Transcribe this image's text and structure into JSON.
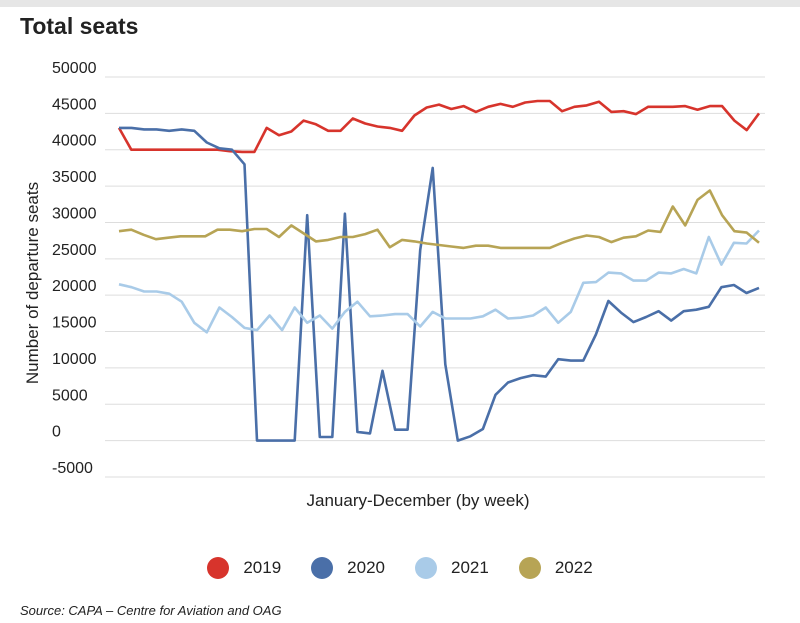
{
  "title": "Total seats",
  "source": "Source: CAPA – Centre for Aviation and OAG",
  "chart_data": {
    "type": "line",
    "xlabel": "January-December (by week)",
    "ylabel": "Number of departure seats",
    "ylim": [
      -5000,
      50000
    ],
    "yticks": [
      -5000,
      0,
      5000,
      10000,
      15000,
      20000,
      25000,
      30000,
      35000,
      40000,
      45000,
      50000
    ],
    "grid": true,
    "legend_position": "bottom",
    "series": [
      {
        "name": "2019",
        "color": "#d7342c",
        "values": [
          43000,
          40000,
          40000,
          40000,
          40000,
          40000,
          40000,
          40000,
          40000,
          39800,
          39700,
          39700,
          43000,
          42000,
          42500,
          44000,
          43500,
          42600,
          42600,
          44300,
          43600,
          43200,
          43000,
          42600,
          44700,
          45800,
          46200,
          45600,
          46000,
          45200,
          45900,
          46300,
          45900,
          46500,
          46700,
          46700,
          45300,
          45900,
          46100,
          46600,
          45200,
          45300,
          44900,
          45900,
          45900,
          45900,
          46000,
          45500,
          46000,
          46000,
          44000,
          42700,
          45000
        ]
      },
      {
        "name": "2020",
        "color": "#4a6fa8",
        "values": [
          43000,
          43000,
          42800,
          42800,
          42600,
          42800,
          42600,
          41000,
          40200,
          40000,
          38000,
          0,
          0,
          0,
          0,
          31000,
          500,
          500,
          31200,
          1200,
          1000,
          9600,
          1500,
          1500,
          26200,
          37500,
          10500,
          0,
          600,
          1600,
          6300,
          8000,
          8600,
          9000,
          8800,
          11200,
          11000,
          11000,
          14600,
          19200,
          17600,
          16300,
          17000,
          17800,
          16500,
          17800,
          18000,
          18400,
          21100,
          21400,
          20300,
          21000
        ]
      },
      {
        "name": "2021",
        "color": "#a9cbe8",
        "values": [
          21500,
          21100,
          20500,
          20500,
          20200,
          19100,
          16200,
          14900,
          18300,
          17000,
          15500,
          15200,
          17200,
          15200,
          18300,
          16200,
          17200,
          15400,
          17700,
          19100,
          17100,
          17200,
          17400,
          17400,
          15700,
          17700,
          16800,
          16800,
          16800,
          17100,
          18000,
          16800,
          16900,
          17200,
          18300,
          16200,
          17700,
          21700,
          21800,
          23100,
          23000,
          22000,
          22000,
          23100,
          23000,
          23600,
          23000,
          28000,
          24200,
          27200,
          27100,
          28900
        ]
      },
      {
        "name": "2022",
        "color": "#b7a455",
        "values": [
          28800,
          29000,
          28300,
          27700,
          27900,
          28100,
          28100,
          28100,
          29000,
          29000,
          28800,
          29100,
          29100,
          28000,
          29600,
          28500,
          27400,
          27600,
          28000,
          28000,
          28400,
          29000,
          26600,
          27600,
          27400,
          27100,
          26900,
          26700,
          26500,
          26800,
          26800,
          26500,
          26500,
          26500,
          26500,
          26500,
          27200,
          27800,
          28200,
          28000,
          27300,
          27900,
          28100,
          28900,
          28700,
          32200,
          29600,
          33100,
          34400,
          31000,
          28800,
          28600,
          27200
        ]
      }
    ]
  }
}
